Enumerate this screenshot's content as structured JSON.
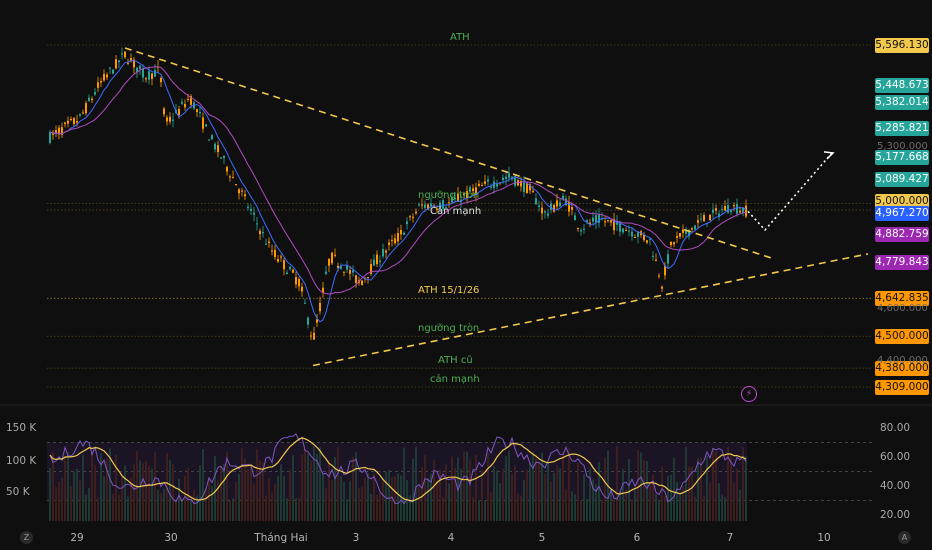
{
  "chart_data": {
    "type": "candlestick",
    "price_axis": {
      "badges": [
        {
          "value": "5,596.130",
          "bg": "#f2c94c",
          "fg": "#111111"
        },
        {
          "value": "5,448.673",
          "bg": "#26a69a",
          "fg": "#ffffff"
        },
        {
          "value": "5,382.014",
          "bg": "#26a69a",
          "fg": "#ffffff"
        },
        {
          "value": "5,285.821",
          "bg": "#26a69a",
          "fg": "#ffffff"
        },
        {
          "value": "5,177.668",
          "bg": "#26a69a",
          "fg": "#ffffff"
        },
        {
          "value": "5,089.427",
          "bg": "#26a69a",
          "fg": "#ffffff"
        },
        {
          "value": "5,000.000",
          "bg": "#f2c94c",
          "fg": "#111111"
        },
        {
          "value": "4,967.270",
          "bg": "#2962ff",
          "fg": "#ffffff"
        },
        {
          "value": "4,882.759",
          "bg": "#9c27b0",
          "fg": "#ffffff"
        },
        {
          "value": "4,779.843",
          "bg": "#9c27b0",
          "fg": "#ffffff"
        },
        {
          "value": "4,642.835",
          "bg": "#ff9800",
          "fg": "#111111"
        },
        {
          "value": "4,500.000",
          "bg": "#ff9800",
          "fg": "#111111"
        },
        {
          "value": "4,380.000",
          "bg": "#ff9800",
          "fg": "#111111"
        },
        {
          "value": "4,309.000",
          "bg": "#ff9800",
          "fg": "#111111"
        }
      ],
      "plain_ticks": [
        "5,300.000",
        "4,600.000",
        "4,400.000"
      ]
    },
    "levels": [
      {
        "price": 5596.13,
        "label": "ATH",
        "color": "#4caf50"
      },
      {
        "price": 5000,
        "label": "ngưỡng tròn",
        "color": "#4caf50"
      },
      {
        "price": 4975,
        "label": "Cản mạnh",
        "color": "#e0e0e0"
      },
      {
        "price": 4642.835,
        "label": "ATH 15/1/26",
        "color": "#f2c94c"
      },
      {
        "price": 4500,
        "label": "ngưỡng tròn",
        "color": "#4caf50"
      },
      {
        "price": 4380,
        "label": "ATH cũ",
        "color": "#4caf50"
      },
      {
        "price": 4309,
        "label": "cản mạnh",
        "color": "#4caf50"
      }
    ],
    "x_ticks": [
      "29",
      "30",
      "Tháng Hai",
      "3",
      "4",
      "5",
      "6",
      "7",
      "10"
    ],
    "oscillator": {
      "left_ticks": [
        "150 K",
        "100 K",
        "50 K"
      ],
      "right_ticks": [
        "80.00",
        "60.00",
        "40.00",
        "20.00"
      ],
      "bands": [
        70,
        50,
        30
      ]
    },
    "colors": {
      "up": "#26a69a",
      "down": "#ff9800",
      "trendline": "#f2c94c",
      "ma_fast": "#3f6bff",
      "ma_slow": "#b04cc0",
      "rsi": "#7e57c2",
      "rsi_ma": "#f2c94c"
    }
  },
  "corner": {
    "left": "Z",
    "right": "A"
  },
  "icons": {
    "bolt": "lightning-icon"
  }
}
